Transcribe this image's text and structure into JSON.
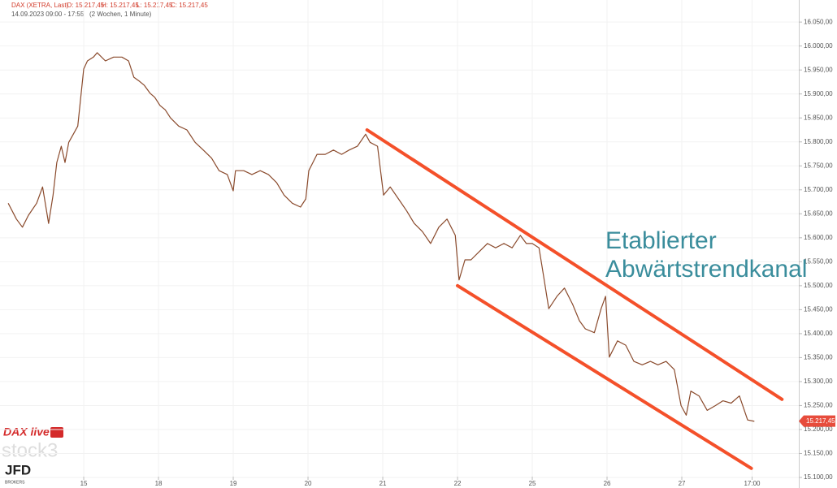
{
  "chart_data": {
    "type": "line",
    "title": "DAX (XETRA, Last)",
    "ohlc": [
      "O: 15.217,45",
      "H: 15.217,45",
      "L: 15.217,45",
      "C: 15.217,45"
    ],
    "subtitle": "14.09.2023 09:00 - 17:55",
    "period": "(2 Wochen, 1 Minute)",
    "annotation": [
      "Etablierter",
      "Abwärtstrendkanal"
    ],
    "annotation_color": "#3a8d9c",
    "last_price": {
      "value": 15217.45,
      "label": "15.217,45"
    },
    "trendlines": [
      {
        "color": "#f4502a",
        "x": [
          4.79,
          10.34
        ],
        "y": [
          15825,
          15263
        ]
      },
      {
        "color": "#f4502a",
        "x": [
          6.0,
          9.93
        ],
        "y": [
          15500,
          15119
        ]
      }
    ],
    "x": [
      -0.01,
      0.1,
      0.18,
      0.26,
      0.37,
      0.45,
      0.53,
      0.59,
      0.64,
      0.7,
      0.75,
      0.8,
      0.86,
      0.92,
      1.0,
      1.05,
      1.13,
      1.18,
      1.29,
      1.4,
      1.51,
      1.6,
      1.67,
      1.75,
      1.81,
      1.89,
      1.95,
      2.02,
      2.09,
      2.16,
      2.27,
      2.38,
      2.49,
      2.6,
      2.71,
      2.81,
      2.92,
      3.0,
      3.03,
      3.14,
      3.25,
      3.36,
      3.47,
      3.58,
      3.68,
      3.79,
      3.9,
      3.97,
      4.01,
      4.12,
      4.23,
      4.34,
      4.45,
      4.55,
      4.66,
      4.77,
      4.83,
      4.93,
      5.01,
      5.1,
      5.21,
      5.32,
      5.42,
      5.53,
      5.64,
      5.75,
      5.86,
      5.97,
      6.02,
      6.1,
      6.18,
      6.29,
      6.4,
      6.51,
      6.62,
      6.73,
      6.84,
      6.92,
      7.0,
      7.09,
      7.16,
      7.22,
      7.33,
      7.43,
      7.54,
      7.63,
      7.71,
      7.83,
      7.92,
      7.98,
      8.03,
      8.14,
      8.25,
      8.36,
      8.47,
      8.58,
      8.68,
      8.79,
      8.9,
      8.99,
      9.06,
      9.12,
      9.23,
      9.34,
      9.45,
      9.55,
      9.66,
      9.77,
      9.88,
      9.97
    ],
    "series": [
      {
        "color": "#8a4a2c",
        "values": [
          15672,
          15639,
          15622,
          15647,
          15672,
          15706,
          15630,
          15689,
          15757,
          15791,
          15757,
          15799,
          15816,
          15833,
          15952,
          15969,
          15977,
          15986,
          15969,
          15977,
          15977,
          15969,
          15935,
          15926,
          15918,
          15901,
          15893,
          15876,
          15867,
          15850,
          15833,
          15825,
          15799,
          15783,
          15766,
          15740,
          15732,
          15698,
          15740,
          15740,
          15732,
          15740,
          15732,
          15715,
          15689,
          15672,
          15664,
          15681,
          15740,
          15774,
          15774,
          15783,
          15774,
          15783,
          15791,
          15816,
          15799,
          15791,
          15689,
          15706,
          15681,
          15656,
          15630,
          15613,
          15588,
          15622,
          15639,
          15605,
          15512,
          15554,
          15554,
          15571,
          15588,
          15579,
          15588,
          15579,
          15605,
          15588,
          15588,
          15579,
          15512,
          15452,
          15478,
          15495,
          15461,
          15427,
          15410,
          15402,
          15452,
          15478,
          15351,
          15385,
          15376,
          15342,
          15335,
          15342,
          15335,
          15342,
          15325,
          15250,
          15230,
          15280,
          15270,
          15240,
          15250,
          15260,
          15255,
          15270,
          15220,
          15217
        ]
      }
    ],
    "xlim": [
      -0.12,
      10.565
    ],
    "xticks": [
      {
        "value": 1,
        "label": "15"
      },
      {
        "value": 2,
        "label": "18"
      },
      {
        "value": 3,
        "label": "19"
      },
      {
        "value": 4,
        "label": "20"
      },
      {
        "value": 5,
        "label": "21"
      },
      {
        "value": 6,
        "label": "22"
      },
      {
        "value": 7,
        "label": "25"
      },
      {
        "value": 8,
        "label": "26"
      },
      {
        "value": 9,
        "label": "27"
      },
      {
        "value": 9.94,
        "label": "17:00"
      }
    ],
    "ylim": [
      15078,
      16096
    ],
    "yticks": [
      {
        "value": 16050,
        "label": "16.050,00"
      },
      {
        "value": 16000,
        "label": "16.000,00"
      },
      {
        "value": 15950,
        "label": "15.950,00"
      },
      {
        "value": 15900,
        "label": "15.900,00"
      },
      {
        "value": 15850,
        "label": "15.850,00"
      },
      {
        "value": 15800,
        "label": "15.800,00"
      },
      {
        "value": 15750,
        "label": "15.750,00"
      },
      {
        "value": 15700,
        "label": "15.700,00"
      },
      {
        "value": 15650,
        "label": "15.650,00"
      },
      {
        "value": 15600,
        "label": "15.600,00"
      },
      {
        "value": 15550,
        "label": "15.550,00"
      },
      {
        "value": 15500,
        "label": "15.500,00"
      },
      {
        "value": 15450,
        "label": "15.450,00"
      },
      {
        "value": 15400,
        "label": "15.400,00"
      },
      {
        "value": 15350,
        "label": "15.350,00"
      },
      {
        "value": 15300,
        "label": "15.300,00"
      },
      {
        "value": 15250,
        "label": "15.250,00"
      },
      {
        "value": 15200,
        "label": "15.200,00"
      },
      {
        "value": 15150,
        "label": "15.150,00"
      },
      {
        "value": 15100,
        "label": "15.100,00"
      }
    ],
    "grid": true
  },
  "branding": {
    "show": "DAX live",
    "platform": "stock3",
    "broker": "JFD",
    "broker_sub": "BROKERS"
  }
}
